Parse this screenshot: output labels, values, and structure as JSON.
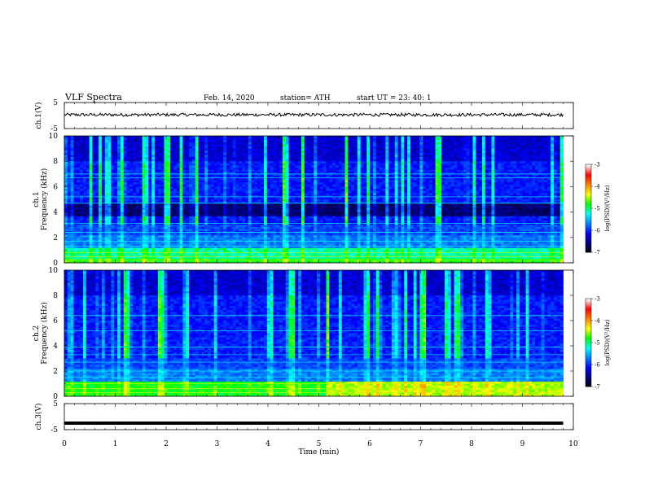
{
  "header": {
    "title": "VLF  Spectra",
    "date": "Feb. 14, 2020",
    "station": "station= ATH",
    "start": "start  UT  =    23: 40: 1"
  },
  "chart_data": [
    {
      "type": "line",
      "name": "ch1-waveform",
      "ylabel": "ch.1(V)",
      "yticks": [
        "5",
        "-5"
      ],
      "ylim": [
        -5,
        5
      ],
      "xlim": [
        0,
        10
      ],
      "baseline": 0.3,
      "noise_amplitude": 0.6,
      "end_x": 9.8
    },
    {
      "type": "heatmap",
      "name": "ch1-spectrogram",
      "ylabel_top": "ch.1",
      "ylabel": "Frequency  (kHz)",
      "yticks": [
        "0",
        "2",
        "4",
        "6",
        "8",
        "10"
      ],
      "ylim": [
        0,
        10
      ],
      "xlim": [
        0,
        10
      ],
      "end_x": 9.8,
      "colorbar_label": "log(PSD)(V²/Hz)",
      "colorbar_ticks": [
        "-3",
        "-4",
        "-5",
        "-6",
        "-7"
      ],
      "colorbar_range": [
        -7,
        -3
      ]
    },
    {
      "type": "heatmap",
      "name": "ch2-spectrogram",
      "ylabel_top": "ch.2",
      "ylabel": "Frequency  (kHz)",
      "yticks": [
        "0",
        "2",
        "4",
        "6",
        "8",
        "10"
      ],
      "ylim": [
        0,
        10
      ],
      "xlim": [
        0,
        10
      ],
      "end_x": 9.8,
      "colorbar_label": "log(PSD)(V²/Hz)",
      "colorbar_ticks": [
        "-3",
        "-4",
        "-5",
        "-6",
        "-7"
      ],
      "colorbar_range": [
        -7,
        -3
      ]
    },
    {
      "type": "line",
      "name": "ch3-waveform",
      "ylabel": "ch.3(V)",
      "yticks": [
        "5",
        "-5"
      ],
      "ylim": [
        -5,
        5
      ],
      "xlim": [
        0,
        10
      ],
      "baseline": -2.5,
      "noise_amplitude": 0.0,
      "end_x": 9.8
    }
  ],
  "xaxis": {
    "label": "Time  (min)",
    "ticks": [
      "0",
      "1",
      "2",
      "3",
      "4",
      "5",
      "6",
      "7",
      "8",
      "9",
      "10"
    ],
    "range": [
      0,
      10
    ]
  },
  "colors": {
    "background": "#ffffff",
    "axis": "#000000",
    "colormap": [
      "#000000",
      "#00007f",
      "#0000ff",
      "#0080ff",
      "#00ffff",
      "#00ff00",
      "#ffff00",
      "#ff8000",
      "#ff0000",
      "#ffffff"
    ]
  }
}
